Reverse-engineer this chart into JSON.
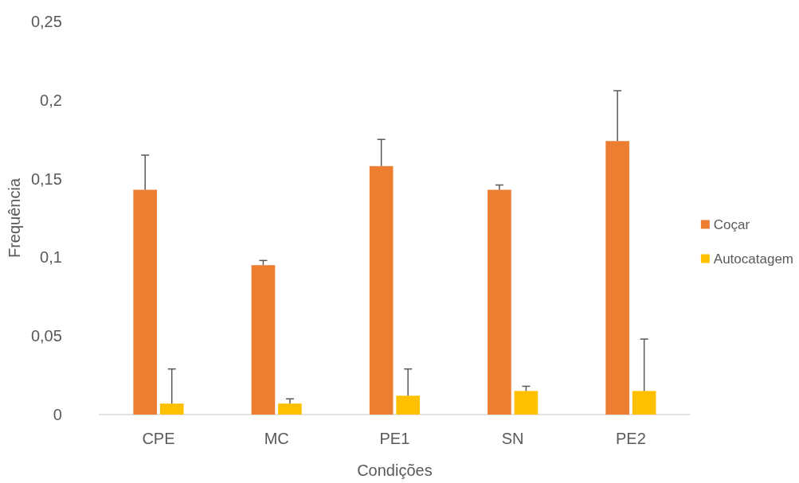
{
  "chart_data": {
    "type": "bar",
    "xlabel": "Condições",
    "ylabel": "Frequência",
    "categories": [
      "CPE",
      "MC",
      "PE1",
      "SN",
      "PE2"
    ],
    "series": [
      {
        "name": "Coçar",
        "color": "#ed7d31",
        "values": [
          0.143,
          0.095,
          0.158,
          0.143,
          0.174
        ],
        "errors": [
          [
            0.143,
            0.165
          ],
          [
            0.095,
            0.098
          ],
          [
            0.158,
            0.175
          ],
          [
            0.143,
            0.146
          ],
          [
            0.174,
            0.206
          ]
        ]
      },
      {
        "name": "Autocatagem",
        "color": "#ffc000",
        "values": [
          0.007,
          0.007,
          0.012,
          0.015,
          0.015
        ],
        "errors": [
          [
            0.007,
            0.029
          ],
          [
            0.007,
            0.01
          ],
          [
            0.012,
            0.029
          ],
          [
            0.015,
            0.018
          ],
          [
            0.015,
            0.048
          ]
        ]
      }
    ],
    "ylim": [
      0,
      0.25
    ],
    "yticks": [
      0,
      {
        "value": 0.05,
        "label": "0,05"
      },
      {
        "value": 0.1,
        "label": "0,1"
      },
      {
        "value": 0.15,
        "label": "0,15"
      },
      {
        "value": 0.2,
        "label": "0,2"
      },
      {
        "value": 0.25,
        "label": "0,25"
      }
    ],
    "grid": false,
    "legend": "right"
  }
}
